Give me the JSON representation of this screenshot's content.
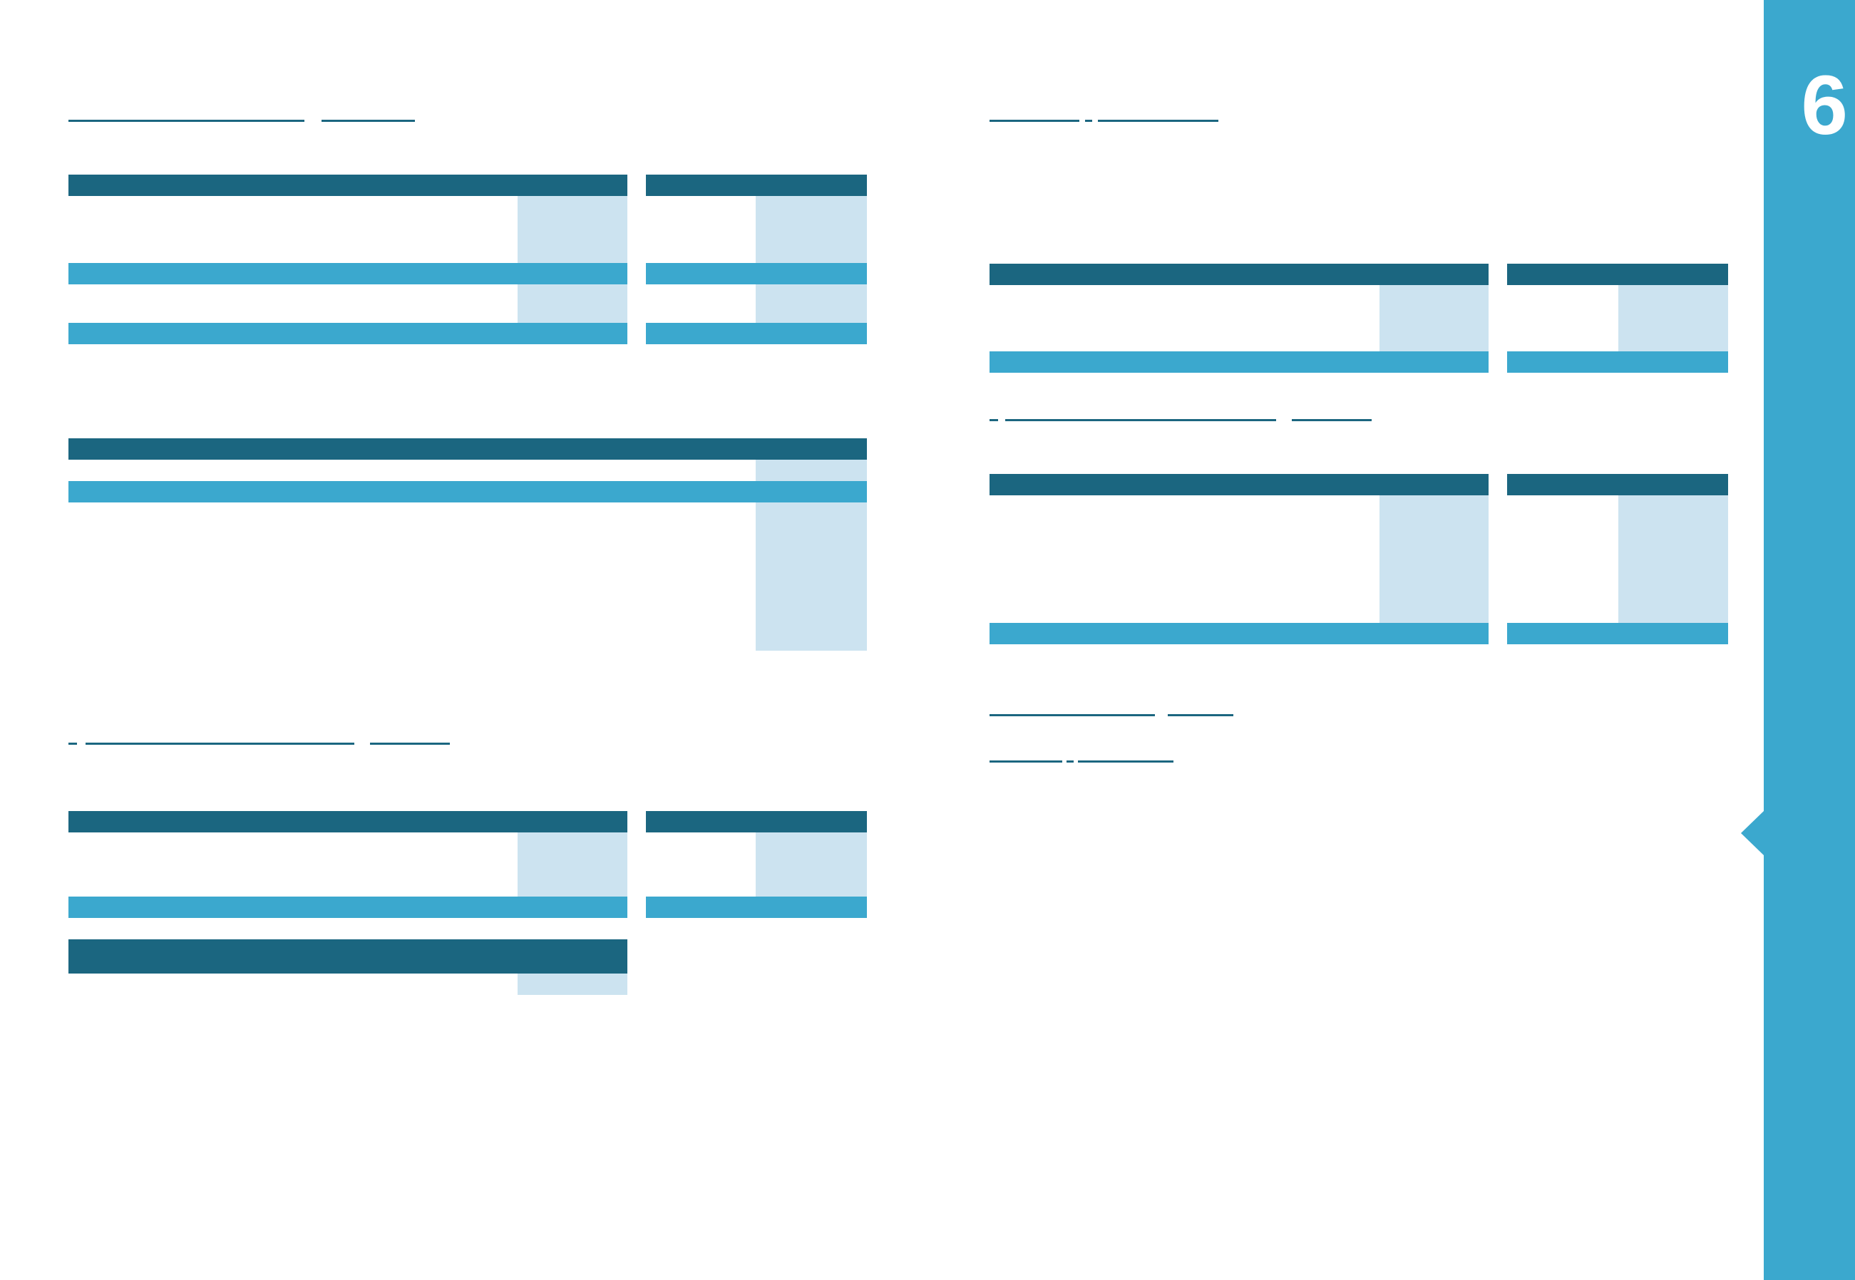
{
  "page": {
    "number": "6",
    "colors": {
      "header_bar": "#1b6680",
      "row_bar": "#3ba8ce",
      "highlight_column": "#cce3f0",
      "sidebar": "#3ba8ce",
      "background": "#ffffff"
    }
  }
}
